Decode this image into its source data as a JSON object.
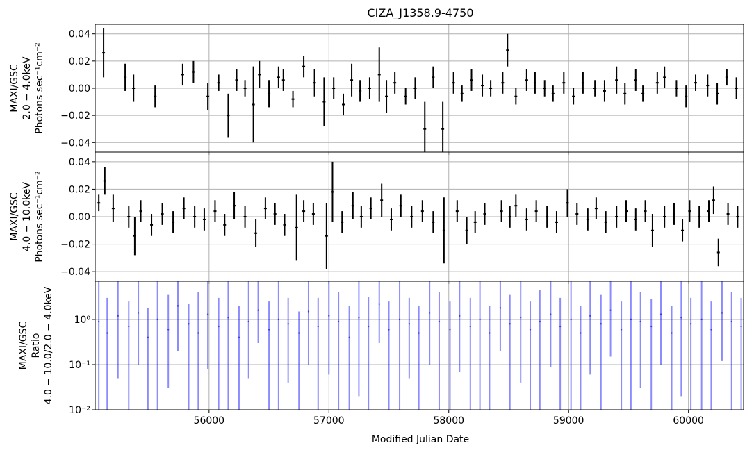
{
  "title": "CIZA_J1358.9-4750",
  "xlabel": "Modified Julian Date",
  "xlim": [
    55050,
    60460
  ],
  "xticks": [
    56000,
    57000,
    58000,
    59000,
    60000
  ],
  "chart_data": [
    {
      "type": "scatter",
      "panel": "soft",
      "ylabel_lines": [
        "MAXI/GSC",
        "2.0 − 4.0keV",
        "Photons sec⁻¹cm⁻²"
      ],
      "ylim": [
        -0.047,
        0.047
      ],
      "yticks": [
        -0.04,
        -0.02,
        0.0,
        0.02,
        0.04
      ],
      "ytick_labels": [
        "−0.04",
        "−0.02",
        "0.00",
        "0.02",
        "0.04"
      ],
      "grid": true,
      "series": [
        {
          "color": "#000000",
          "note_free": true,
          "x": [
            55120,
            55300,
            55370,
            55550,
            55780,
            55870,
            55990,
            56080,
            56160,
            56230,
            56300,
            56370,
            56420,
            56500,
            56580,
            56620,
            56700,
            56790,
            56880,
            56960,
            57040,
            57120,
            57190,
            57260,
            57340,
            57420,
            57480,
            57550,
            57640,
            57720,
            57800,
            57870,
            57950,
            58040,
            58110,
            58190,
            58280,
            58350,
            58450,
            58490,
            58560,
            58650,
            58720,
            58800,
            58870,
            58960,
            59040,
            59120,
            59220,
            59300,
            59400,
            59470,
            59560,
            59620,
            59740,
            59800,
            59900,
            59980,
            60060,
            60160,
            60240,
            60320,
            60400
          ],
          "y": [
            0.026,
            0.008,
            0.0,
            -0.006,
            0.01,
            0.012,
            -0.006,
            0.004,
            -0.02,
            0.006,
            0.0,
            -0.012,
            0.01,
            -0.004,
            0.008,
            0.006,
            -0.008,
            0.016,
            0.004,
            -0.01,
            0.0,
            -0.012,
            0.006,
            -0.002,
            0.0,
            0.01,
            -0.006,
            0.004,
            -0.006,
            0.0,
            -0.03,
            0.008,
            -0.03,
            0.004,
            -0.004,
            0.006,
            0.002,
            0.0,
            0.004,
            0.028,
            -0.006,
            0.006,
            0.004,
            0.0,
            -0.004,
            0.004,
            -0.006,
            0.004,
            0.0,
            -0.002,
            0.006,
            -0.004,
            0.006,
            -0.004,
            0.004,
            0.008,
            0.0,
            -0.006,
            0.004,
            0.002,
            -0.004,
            0.008,
            0.0
          ],
          "yerr": [
            0.018,
            0.01,
            0.01,
            0.008,
            0.008,
            0.008,
            0.01,
            0.006,
            0.016,
            0.008,
            0.006,
            0.028,
            0.01,
            0.01,
            0.008,
            0.008,
            0.006,
            0.008,
            0.01,
            0.018,
            0.008,
            0.008,
            0.012,
            0.008,
            0.008,
            0.02,
            0.012,
            0.008,
            0.006,
            0.008,
            0.02,
            0.008,
            0.02,
            0.008,
            0.006,
            0.008,
            0.008,
            0.006,
            0.008,
            0.012,
            0.006,
            0.008,
            0.008,
            0.006,
            0.006,
            0.008,
            0.006,
            0.008,
            0.006,
            0.008,
            0.01,
            0.008,
            0.008,
            0.006,
            0.008,
            0.008,
            0.006,
            0.008,
            0.006,
            0.008,
            0.008,
            0.006,
            0.008
          ]
        }
      ]
    },
    {
      "type": "scatter",
      "panel": "hard",
      "ylabel_lines": [
        "MAXI/GSC",
        "4.0 − 10.0keV",
        "Photons sec⁻¹cm⁻²"
      ],
      "ylim": [
        -0.047,
        0.047
      ],
      "yticks": [
        -0.04,
        -0.02,
        0.0,
        0.02,
        0.04
      ],
      "ytick_labels": [
        "−0.04",
        "−0.02",
        "0.00",
        "0.02",
        "0.04"
      ],
      "grid": true,
      "series": [
        {
          "color": "#000000",
          "x": [
            55080,
            55130,
            55200,
            55330,
            55380,
            55430,
            55520,
            55610,
            55700,
            55790,
            55880,
            55960,
            56050,
            56130,
            56210,
            56300,
            56390,
            56470,
            56550,
            56630,
            56730,
            56790,
            56870,
            56980,
            57030,
            57110,
            57200,
            57270,
            57350,
            57440,
            57520,
            57600,
            57690,
            57780,
            57870,
            57960,
            58070,
            58150,
            58220,
            58300,
            58440,
            58510,
            58560,
            58650,
            58730,
            58820,
            58900,
            58990,
            59070,
            59160,
            59230,
            59310,
            59400,
            59480,
            59560,
            59640,
            59700,
            59800,
            59880,
            59950,
            60010,
            60090,
            60170,
            60210,
            60250,
            60330,
            60410
          ],
          "y": [
            0.01,
            0.026,
            0.006,
            0.0,
            -0.014,
            0.004,
            -0.006,
            0.002,
            -0.004,
            0.006,
            0.0,
            -0.002,
            0.004,
            -0.006,
            0.008,
            0.0,
            -0.012,
            0.006,
            0.002,
            -0.006,
            -0.008,
            0.004,
            0.002,
            -0.014,
            0.018,
            -0.004,
            0.008,
            0.0,
            0.006,
            0.012,
            -0.002,
            0.008,
            0.0,
            0.004,
            -0.004,
            -0.01,
            0.004,
            -0.01,
            -0.004,
            0.002,
            0.004,
            0.0,
            0.008,
            -0.002,
            0.004,
            0.0,
            -0.004,
            0.01,
            0.002,
            -0.002,
            0.006,
            -0.004,
            0.0,
            0.004,
            -0.002,
            0.004,
            -0.01,
            0.0,
            0.002,
            -0.01,
            0.004,
            0.0,
            0.004,
            0.012,
            -0.026,
            0.002,
            0.0
          ],
          "yerr": [
            0.006,
            0.01,
            0.01,
            0.008,
            0.014,
            0.008,
            0.008,
            0.008,
            0.008,
            0.008,
            0.008,
            0.008,
            0.008,
            0.008,
            0.01,
            0.008,
            0.01,
            0.008,
            0.008,
            0.008,
            0.024,
            0.008,
            0.008,
            0.024,
            0.022,
            0.008,
            0.01,
            0.008,
            0.008,
            0.012,
            0.008,
            0.008,
            0.008,
            0.008,
            0.008,
            0.024,
            0.008,
            0.01,
            0.008,
            0.008,
            0.008,
            0.008,
            0.008,
            0.008,
            0.008,
            0.008,
            0.008,
            0.01,
            0.008,
            0.008,
            0.008,
            0.008,
            0.008,
            0.008,
            0.008,
            0.008,
            0.012,
            0.008,
            0.008,
            0.008,
            0.008,
            0.008,
            0.008,
            0.01,
            0.01,
            0.008,
            0.008
          ]
        }
      ]
    },
    {
      "type": "scatter",
      "panel": "ratio",
      "ylabel_lines": [
        "MAXI/GSC",
        "Ratio",
        "4.0 − 10.0/2.0 − 4.0keV"
      ],
      "yscale": "log",
      "ylim": [
        0.01,
        7
      ],
      "yticks": [
        0.01,
        0.1,
        1
      ],
      "ytick_labels": [
        "10⁻²",
        "10⁻¹",
        "10⁰"
      ],
      "grid": true,
      "series": [
        {
          "color": "#0000ff",
          "x": [
            55080,
            55150,
            55240,
            55330,
            55410,
            55490,
            55570,
            55660,
            55740,
            55830,
            55910,
            55990,
            56080,
            56160,
            56250,
            56330,
            56410,
            56500,
            56580,
            56660,
            56750,
            56830,
            56910,
            57000,
            57080,
            57170,
            57250,
            57330,
            57420,
            57500,
            57590,
            57670,
            57750,
            57840,
            57920,
            58010,
            58090,
            58180,
            58260,
            58340,
            58430,
            58510,
            58600,
            58680,
            58760,
            58850,
            58930,
            59020,
            59100,
            59180,
            59270,
            59350,
            59440,
            59520,
            59600,
            59690,
            59770,
            59860,
            59940,
            60020,
            60110,
            60190,
            60280,
            60360,
            60440
          ],
          "y": [
            0.9,
            0.5,
            1.2,
            0.7,
            1.4,
            0.4,
            1.0,
            0.6,
            2.0,
            0.8,
            0.5,
            1.3,
            0.7,
            1.1,
            0.4,
            0.9,
            1.6,
            0.6,
            1.0,
            0.8,
            0.5,
            1.5,
            0.7,
            1.2,
            0.9,
            0.4,
            1.1,
            0.7,
            2.2,
            0.6,
            1.0,
            0.8,
            0.5,
            1.4,
            0.9,
            0.6,
            1.2,
            0.7,
            1.0,
            0.5,
            1.8,
            0.8,
            1.1,
            0.6,
            0.9,
            1.3,
            0.7,
            1.0,
            0.5,
            1.2,
            0.8,
            1.6,
            0.6,
            1.0,
            0.9,
            0.7,
            1.3,
            0.5,
            1.1,
            0.8,
            1.0,
            0.6,
            1.4,
            0.9,
            0.7
          ],
          "ylow": [
            0.01,
            0.01,
            0.05,
            0.01,
            0.1,
            0.01,
            0.01,
            0.03,
            0.2,
            0.01,
            0.01,
            0.08,
            0.01,
            0.01,
            0.01,
            0.05,
            0.3,
            0.01,
            0.01,
            0.04,
            0.01,
            0.1,
            0.01,
            0.06,
            0.01,
            0.01,
            0.02,
            0.01,
            0.3,
            0.01,
            0.01,
            0.05,
            0.01,
            0.1,
            0.01,
            0.01,
            0.07,
            0.01,
            0.01,
            0.01,
            0.2,
            0.01,
            0.04,
            0.01,
            0.01,
            0.09,
            0.01,
            0.01,
            0.01,
            0.06,
            0.01,
            0.15,
            0.01,
            0.01,
            0.03,
            0.01,
            0.1,
            0.01,
            0.02,
            0.01,
            0.01,
            0.01,
            0.12,
            0.01,
            0.01
          ],
          "yhigh": [
            7,
            3.0,
            7,
            2.5,
            7,
            1.8,
            7,
            3.5,
            7,
            2.2,
            4.0,
            7,
            3.0,
            7,
            2.0,
            7,
            7,
            2.5,
            7,
            3.0,
            1.5,
            7,
            3.0,
            7,
            4.0,
            2.0,
            7,
            3.2,
            7,
            2.5,
            7,
            3.0,
            2.0,
            7,
            4.0,
            2.5,
            7,
            3.0,
            7,
            2.0,
            7,
            3.5,
            7,
            2.5,
            4.5,
            7,
            3.0,
            7,
            2.0,
            7,
            3.5,
            7,
            2.5,
            7,
            4.0,
            2.8,
            7,
            2.0,
            7,
            3.0,
            7,
            2.5,
            7,
            4.0,
            3.0
          ]
        }
      ]
    }
  ]
}
